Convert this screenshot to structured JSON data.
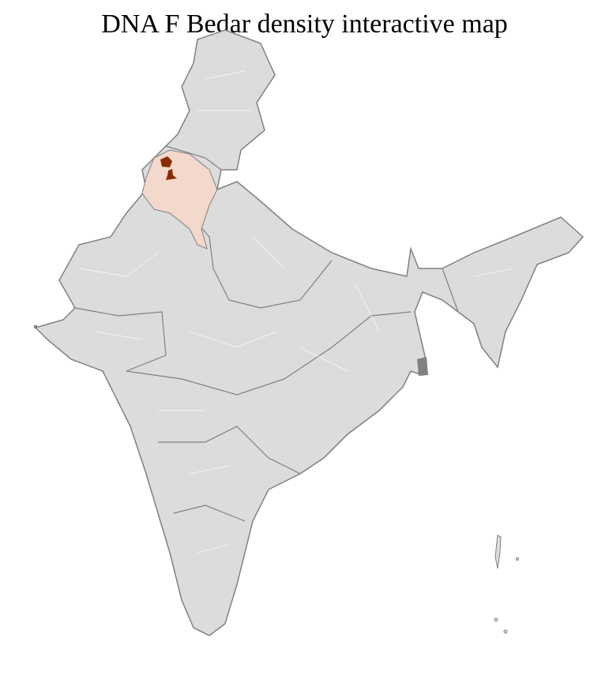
{
  "title": "DNA F Bedar density interactive map",
  "map": {
    "region": "India districts",
    "colors": {
      "base_fill": "#dcdcdc",
      "state_border": "#808080",
      "district_border": "#ffffff",
      "low_density": "#f3d9cc",
      "high_density": "#8b2a00"
    },
    "highlighted_regions": [
      {
        "area": "Punjab / Haryana / Himachal districts",
        "level": "low"
      },
      {
        "area": "Punjab district (north)",
        "level": "high"
      },
      {
        "area": "Punjab district (central)",
        "level": "high"
      }
    ]
  }
}
